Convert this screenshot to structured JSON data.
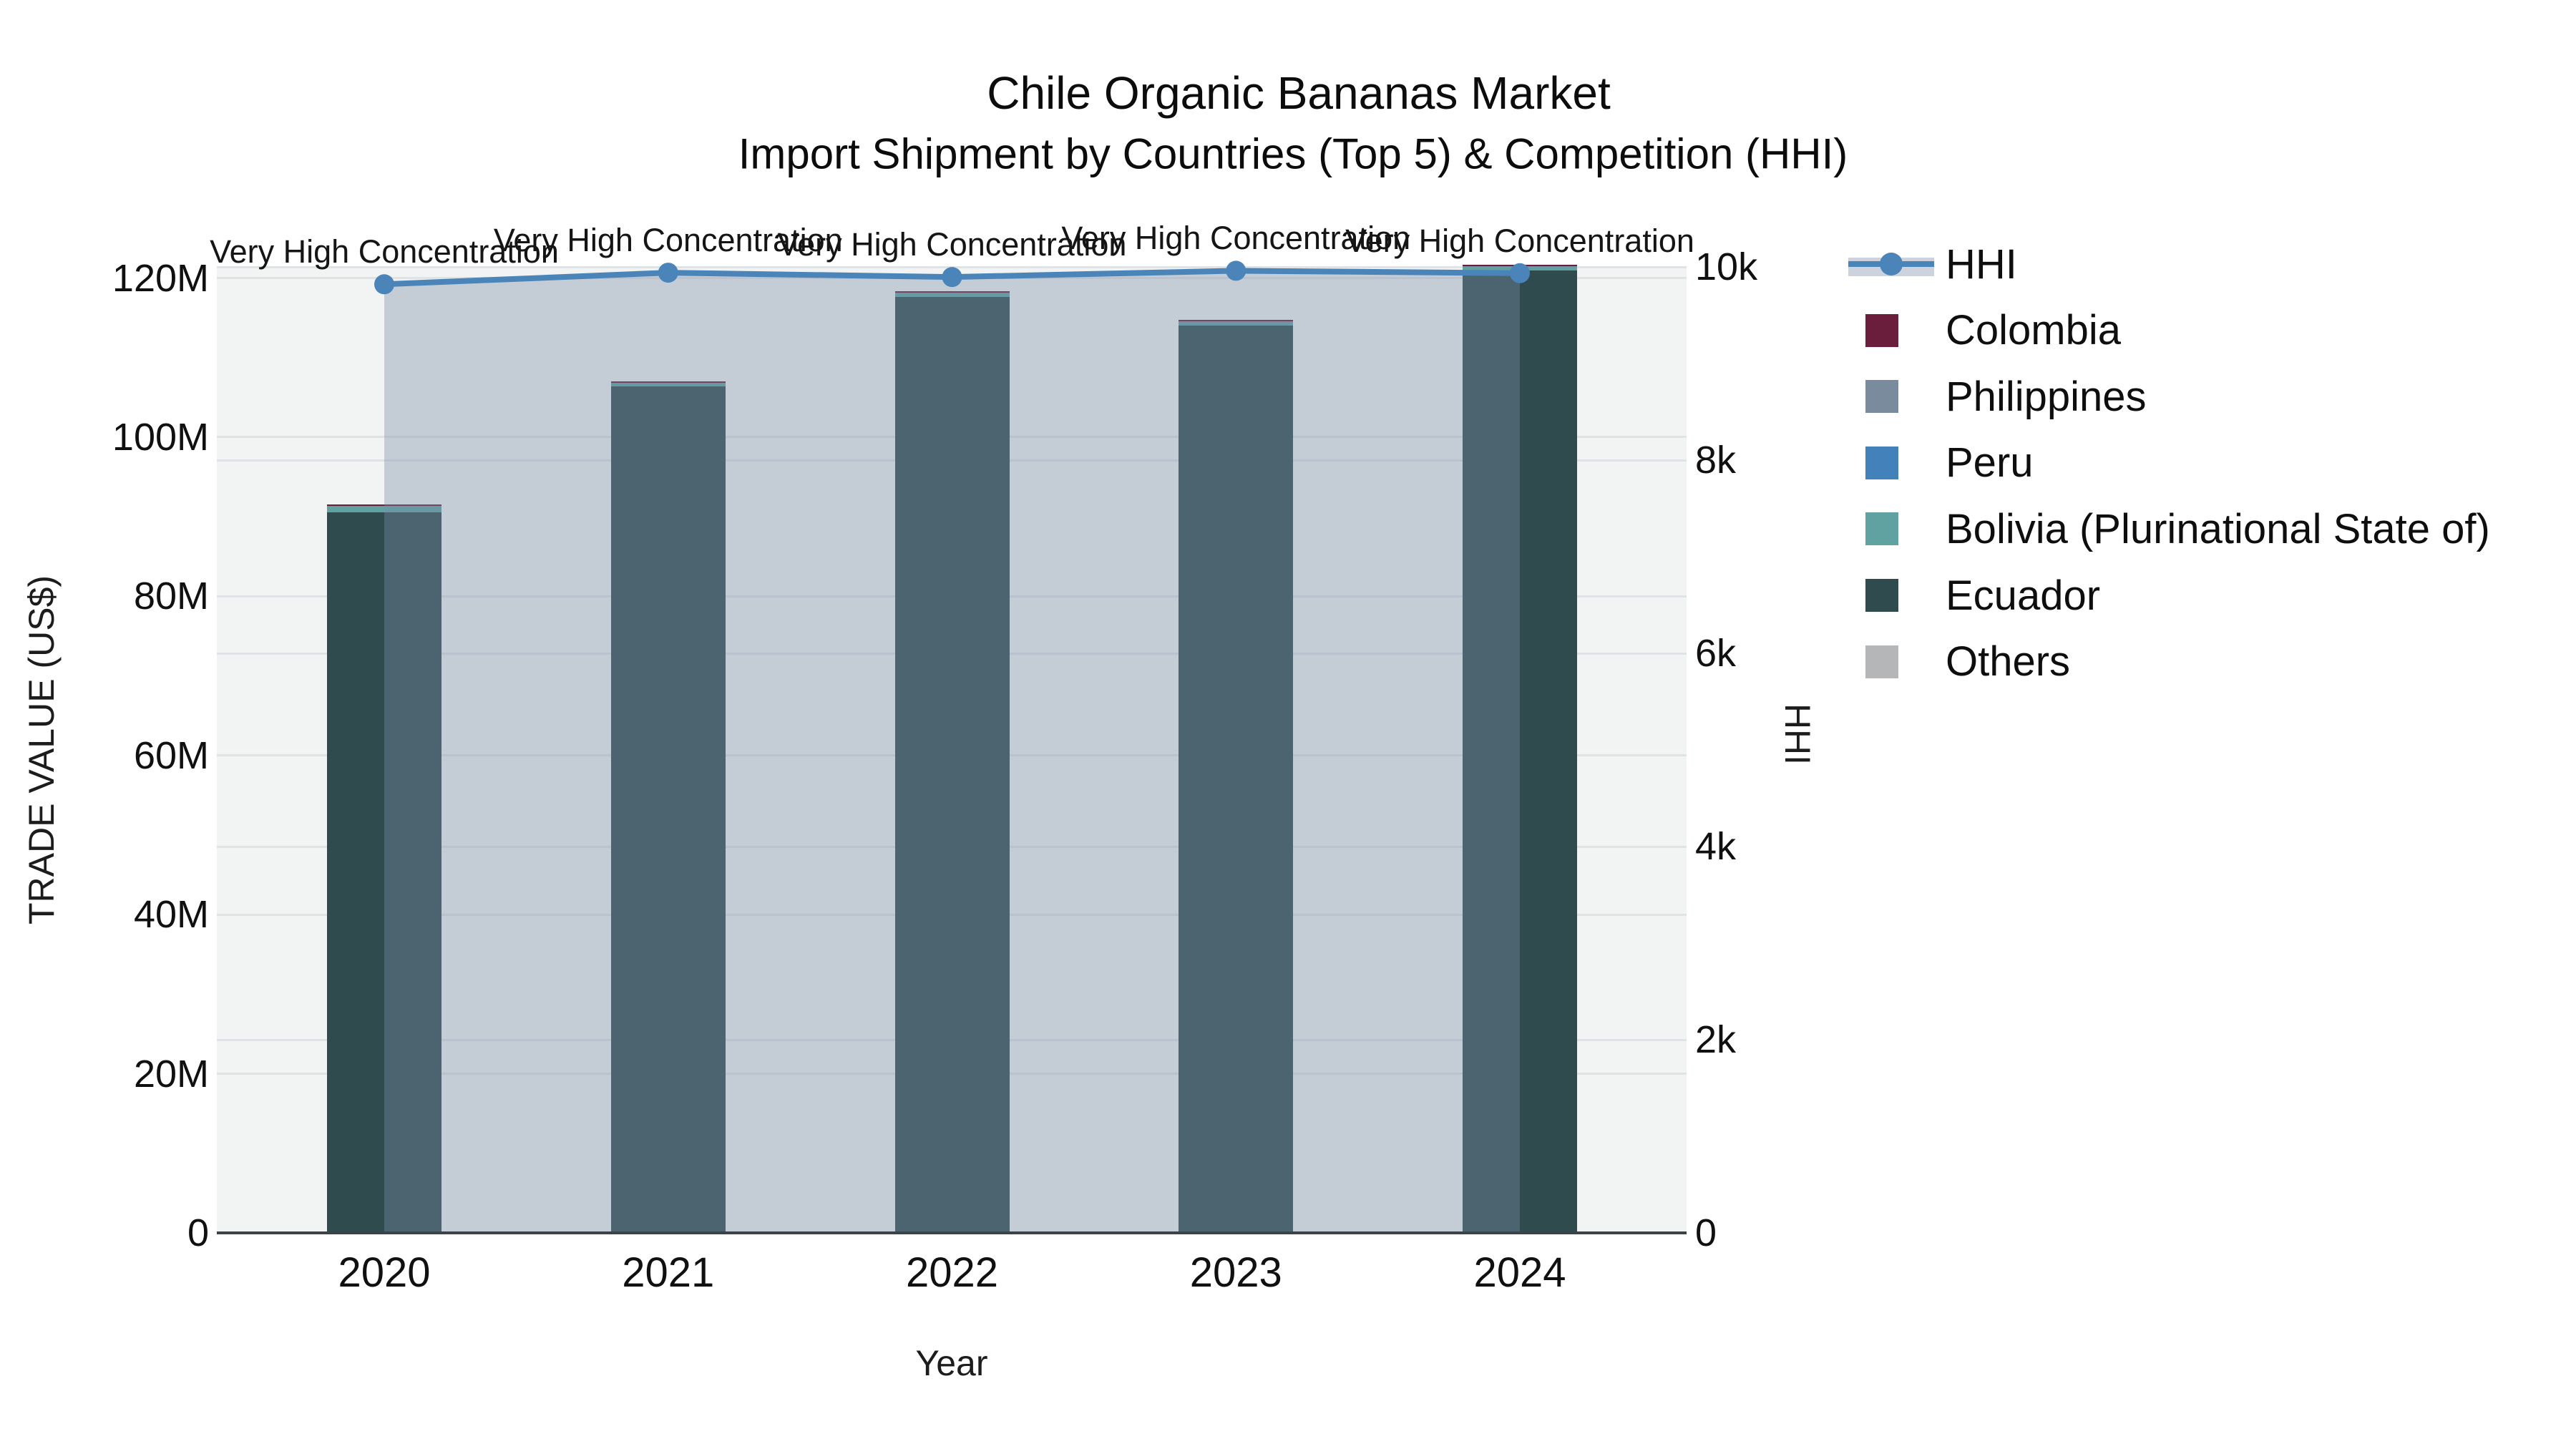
{
  "chart_data": {
    "type": "bar",
    "subtype": "stacked bars (left axis) + line with area fill (right axis)",
    "title": "Chile Organic Bananas Market",
    "subtitle": "Import Shipment by Countries (Top 5) & Competition (HHI)",
    "categories": [
      "2020",
      "2021",
      "2022",
      "2023",
      "2024"
    ],
    "xlabel": "Year",
    "y_left": {
      "label": "TRADE VALUE (US$)",
      "unit": "million US$",
      "tick_labels": [
        "0",
        "20M",
        "40M",
        "60M",
        "80M",
        "100M",
        "120M"
      ],
      "tick_values": [
        0,
        20,
        40,
        60,
        80,
        100,
        120
      ],
      "range": [
        0,
        121.4
      ],
      "grid": true
    },
    "y_right": {
      "label": "HHI",
      "tick_labels": [
        "0",
        "2k",
        "4k",
        "6k",
        "8k",
        "10k"
      ],
      "tick_values": [
        0,
        2000,
        4000,
        6000,
        8000,
        10000
      ],
      "range": [
        0,
        10000
      ],
      "grid": true
    },
    "bar_series": [
      {
        "name": "Colombia",
        "color": "#6b1d3c",
        "values_musd": [
          0.1,
          0.1,
          0.1,
          0.25,
          0.12
        ]
      },
      {
        "name": "Philippines",
        "color": "#7a8b9d",
        "values_musd": [
          0.03,
          0.03,
          0.03,
          0.03,
          0.03
        ]
      },
      {
        "name": "Peru",
        "color": "#4281ba",
        "values_musd": [
          0.12,
          0.06,
          0.06,
          0.06,
          0.1
        ]
      },
      {
        "name": "Bolivia (Plurinational State of)",
        "color": "#5fa2a1",
        "values_musd": [
          0.7,
          0.45,
          0.5,
          0.4,
          0.45
        ]
      },
      {
        "name": "Ecuador",
        "color": "#2f4b4e",
        "values_musd": [
          90.5,
          106.3,
          117.6,
          114.0,
          120.9
        ]
      },
      {
        "name": "Others",
        "color": "#b4b6b8",
        "values_musd": [
          0.05,
          0.05,
          0.05,
          0.05,
          0.05
        ]
      }
    ],
    "stack_order_bottom_to_top": [
      "Others",
      "Ecuador",
      "Bolivia (Plurinational State of)",
      "Peru",
      "Philippines",
      "Colombia"
    ],
    "bar_totals_musd": [
      91.5,
      106.9,
      118.3,
      114.8,
      121.7
    ],
    "line_series": {
      "name": "HHI",
      "values": [
        9820,
        9940,
        9895,
        9960,
        9935
      ],
      "color": "#4a84b8",
      "area_fill": "rgba(122,141,168,0.38)",
      "legend_band_color": "#ccd3dc",
      "marker": "circle"
    },
    "annotations": [
      {
        "text": "Very High Concentration",
        "x": "2020"
      },
      {
        "text": "Very High Concentration",
        "x": "2021"
      },
      {
        "text": "Very High Concentration",
        "x": "2022"
      },
      {
        "text": "Very High Concentration",
        "x": "2023"
      },
      {
        "text": "Very High Concentration",
        "x": "2024"
      }
    ],
    "legend": {
      "position": "right",
      "items": [
        "HHI",
        "Colombia",
        "Philippines",
        "Peru",
        "Bolivia (Plurinational State of)",
        "Ecuador",
        "Others"
      ]
    },
    "plot_background": "#f2f3f3"
  }
}
